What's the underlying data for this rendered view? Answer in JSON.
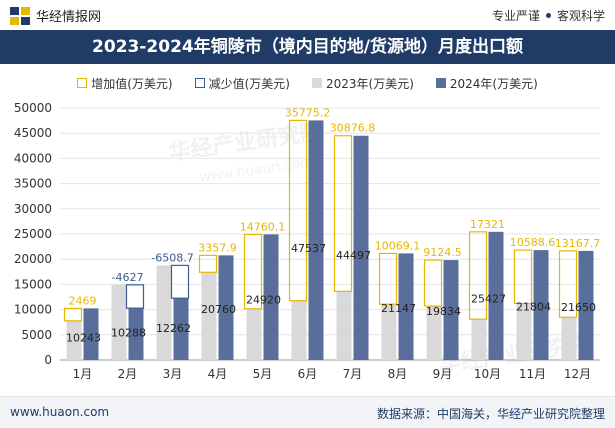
{
  "brand": {
    "name": "华经情报网"
  },
  "tagline": {
    "left": "专业严谨",
    "right": "客观科学"
  },
  "title": "2023-2024年铜陵市（境内目的地/货源地）月度出口额",
  "legend": {
    "increase": "增加值(万美元)",
    "decrease": "减少值(万美元)",
    "y2023": "2023年(万美元)",
    "y2024": "2024年(万美元)"
  },
  "watermark": {
    "cn": "华经产业研究院",
    "en": "www.huaon.com"
  },
  "footer": {
    "website": "www.huaon.com",
    "source": "数据来源：中国海关，华经产业研究院整理"
  },
  "colors": {
    "title_bg": "#1f3b66",
    "bar_2023": "#d9d9d9",
    "bar_2024": "#5a6e9c",
    "increase": "#e6b800",
    "decrease": "#3d5d8f"
  },
  "chart_data": {
    "type": "bar",
    "categories": [
      "1月",
      "2月",
      "3月",
      "4月",
      "5月",
      "6月",
      "7月",
      "8月",
      "9月",
      "10月",
      "11月",
      "12月"
    ],
    "ylim": [
      0,
      50000
    ],
    "yticks": [
      0,
      5000,
      10000,
      15000,
      20000,
      25000,
      30000,
      35000,
      40000,
      45000,
      50000
    ],
    "series": [
      {
        "name": "2023年(万美元)",
        "values": [
          7774,
          14915,
          18770,
          17402,
          10160,
          11762,
          13620,
          11078,
          10710,
          8106,
          11215,
          8482
        ]
      },
      {
        "name": "2024年(万美元)",
        "values": [
          10243,
          10288,
          12262,
          20760,
          24920,
          47537,
          44497,
          21147,
          19834,
          25427,
          21804,
          21650
        ]
      }
    ],
    "change": [
      {
        "type": "increase",
        "label": "2469"
      },
      {
        "type": "decrease",
        "label": "-4627"
      },
      {
        "type": "decrease",
        "label": "-6508.7"
      },
      {
        "type": "increase",
        "label": "3357.9"
      },
      {
        "type": "increase",
        "label": "14760.1"
      },
      {
        "type": "increase",
        "label": "35775.2"
      },
      {
        "type": "increase",
        "label": "30876.8"
      },
      {
        "type": "increase",
        "label": "10069.1"
      },
      {
        "type": "increase",
        "label": "9124.5"
      },
      {
        "type": "increase",
        "label": "17321"
      },
      {
        "type": "increase",
        "label": "10588.6"
      },
      {
        "type": "increase",
        "label": "13167.7"
      }
    ],
    "value_labels": [
      "10243",
      "10288",
      "12262",
      "20760",
      "24920",
      "47537",
      "44497",
      "21147",
      "19834",
      "25427",
      "21804",
      "21650"
    ],
    "grid": true
  }
}
